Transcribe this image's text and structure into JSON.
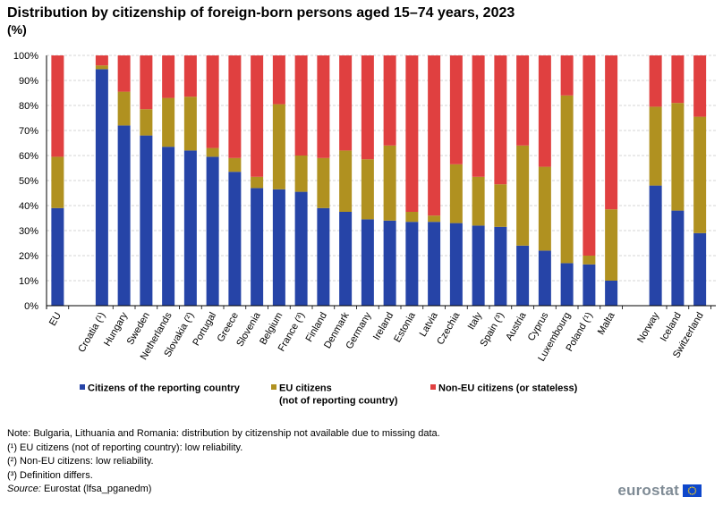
{
  "chart_data": {
    "type": "bar",
    "stacked": true,
    "title": "Distribution by citizenship of foreign-born persons aged 15–74 years, 2023",
    "subtitle": "(%)",
    "ylim": [
      0,
      100
    ],
    "yticks": [
      "0%",
      "10%",
      "20%",
      "30%",
      "40%",
      "50%",
      "60%",
      "70%",
      "80%",
      "90%",
      "100%"
    ],
    "categories": [
      "EU",
      "Croatia (¹)",
      "Hungary",
      "Sweden",
      "Netherlands",
      "Slovakia (²)",
      "Portugal",
      "Greece",
      "Slovenia",
      "Belgium",
      "France (³)",
      "Finland",
      "Denmark",
      "Germany",
      "Ireland",
      "Estonia",
      "Latvia",
      "Czechia",
      "Italy",
      "Spain (³)",
      "Austria",
      "Cyprus",
      "Luxembourg",
      "Poland (¹)",
      "Malta",
      "Norway",
      "Iceland",
      "Switzerland"
    ],
    "groups": [
      [
        0
      ],
      [
        1,
        24
      ],
      [
        25,
        27
      ]
    ],
    "series": [
      {
        "name": "Citizens of the reporting country",
        "color": "#2644a7",
        "values": [
          39,
          94.5,
          72,
          68,
          63.5,
          62,
          59.5,
          53.5,
          47,
          46.5,
          45.5,
          39,
          37.5,
          34.5,
          34,
          33.5,
          33.5,
          33,
          32,
          31.5,
          24,
          22,
          17,
          16.5,
          10,
          48,
          38,
          29
        ]
      },
      {
        "name": "EU citizens (not of reporting country)",
        "color": "#b09120",
        "values": [
          20.5,
          1.5,
          13.5,
          10.5,
          19.5,
          21.5,
          3.5,
          5.5,
          4.5,
          34,
          14.5,
          20,
          24.5,
          24,
          30,
          4,
          2.5,
          23.5,
          19.5,
          17,
          40,
          33.5,
          67,
          3.5,
          28.5,
          31.5,
          43,
          46.5
        ]
      },
      {
        "name": "Non-EU citizens (or stateless)",
        "color": "#e04040",
        "values": [
          40.5,
          4,
          14.5,
          21.5,
          17,
          16.5,
          37,
          41,
          48.5,
          19.5,
          40,
          41,
          38,
          41.5,
          36,
          62.5,
          64,
          43.5,
          48.5,
          51.5,
          36,
          44.5,
          16,
          80,
          61.5,
          20.5,
          19,
          24.5
        ]
      }
    ],
    "legend": [
      "Citizens of the reporting country",
      "EU citizens\n(not of reporting country)",
      "Non-EU citizens (or stateless)"
    ],
    "legend_position": "bottom"
  },
  "notes": [
    "Note: Bulgaria, Lithuania and Romania: distribution by citizenship not available due to missing data.",
    "(¹) EU citizens (not of reporting country): low reliability.",
    "(²) Non-EU citizens: low reliability.",
    "(³) Definition differs."
  ],
  "source": {
    "label": "Source:",
    "text": " Eurostat (lfsa_pganedm)"
  },
  "logo": {
    "text": "eurostat"
  }
}
